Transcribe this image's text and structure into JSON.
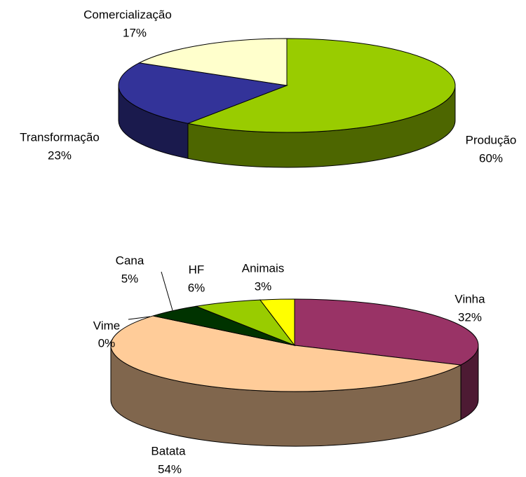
{
  "chart_data": [
    {
      "type": "pie3d",
      "categories": [
        "Produção",
        "Transformação",
        "Comercialização"
      ],
      "values": [
        60,
        23,
        17
      ],
      "value_labels": [
        "60%",
        "23%",
        "17%"
      ],
      "colors": [
        "#99cc00",
        "#333399",
        "#ffffcc"
      ]
    },
    {
      "type": "pie3d",
      "categories": [
        "Vinha",
        "Batata",
        "Vime",
        "Cana",
        "HF",
        "Animais"
      ],
      "values": [
        32,
        54,
        0,
        5,
        6,
        3
      ],
      "value_labels": [
        "32%",
        "54%",
        "0%",
        "5%",
        "6%",
        "3%"
      ],
      "colors": [
        "#993366",
        "#ffcc99",
        "#ccffff",
        "#003300",
        "#99cc00",
        "#ffff00"
      ]
    }
  ]
}
